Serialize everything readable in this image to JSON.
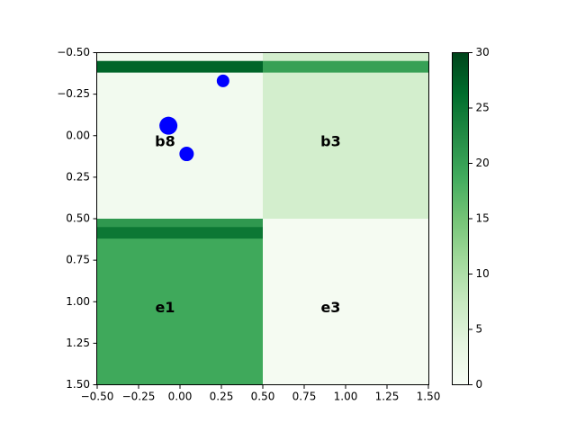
{
  "chart_data": {
    "type": "heatmap",
    "colormap": "Greens",
    "title": "",
    "xlabel": "",
    "ylabel": "",
    "xlim": [
      -0.5,
      1.5
    ],
    "ylim": [
      1.5,
      -0.5
    ],
    "y_inverted": true,
    "vmin": 0,
    "vmax": 30,
    "x_ticks": [
      -0.5,
      -0.25,
      0.0,
      0.25,
      0.5,
      0.75,
      1.0,
      1.25,
      1.5
    ],
    "y_ticks": [
      -0.5,
      -0.25,
      0.0,
      0.25,
      0.5,
      0.75,
      1.0,
      1.25,
      1.5
    ],
    "x_tick_labels": [
      "−0.50",
      "−0.25",
      "0.00",
      "0.25",
      "0.50",
      "0.75",
      "1.00",
      "1.25",
      "1.50"
    ],
    "y_tick_labels": [
      "−0.50",
      "−0.25",
      "0.00",
      "0.25",
      "0.50",
      "0.75",
      "1.00",
      "1.25",
      "1.50"
    ],
    "colorbar_ticks": [
      0,
      5,
      10,
      15,
      20,
      25,
      30
    ],
    "colorbar_tick_labels": [
      "0",
      "5",
      "10",
      "15",
      "20",
      "25",
      "30"
    ],
    "grid": false,
    "cells": [
      {
        "label": "b8",
        "row": 0,
        "col": 0,
        "value": 1
      },
      {
        "label": "b3",
        "row": 0,
        "col": 1,
        "value": 6
      },
      {
        "label": "e1",
        "row": 1,
        "col": 0,
        "value": 19
      },
      {
        "label": "e3",
        "row": 1,
        "col": 1,
        "value": 0.5
      }
    ],
    "bands": [
      {
        "x": [
          -0.5,
          0.5
        ],
        "y": [
          -0.45,
          -0.38
        ],
        "value": 27
      },
      {
        "x": [
          0.5,
          1.5
        ],
        "y": [
          -0.5,
          -0.45
        ],
        "value": 6
      },
      {
        "x": [
          0.5,
          1.5
        ],
        "y": [
          -0.45,
          -0.38
        ],
        "value": 20
      },
      {
        "x": [
          -0.5,
          0.5
        ],
        "y": [
          0.5,
          0.55
        ],
        "value": 21
      },
      {
        "x": [
          -0.5,
          0.5
        ],
        "y": [
          0.55,
          0.62
        ],
        "value": 25
      }
    ],
    "points": [
      {
        "x": 0.26,
        "y": -0.33,
        "size": 7,
        "color": "#0000ff"
      },
      {
        "x": -0.07,
        "y": -0.06,
        "size": 10,
        "color": "#0000ff"
      },
      {
        "x": 0.04,
        "y": 0.11,
        "size": 8,
        "color": "#0000ff"
      }
    ]
  }
}
